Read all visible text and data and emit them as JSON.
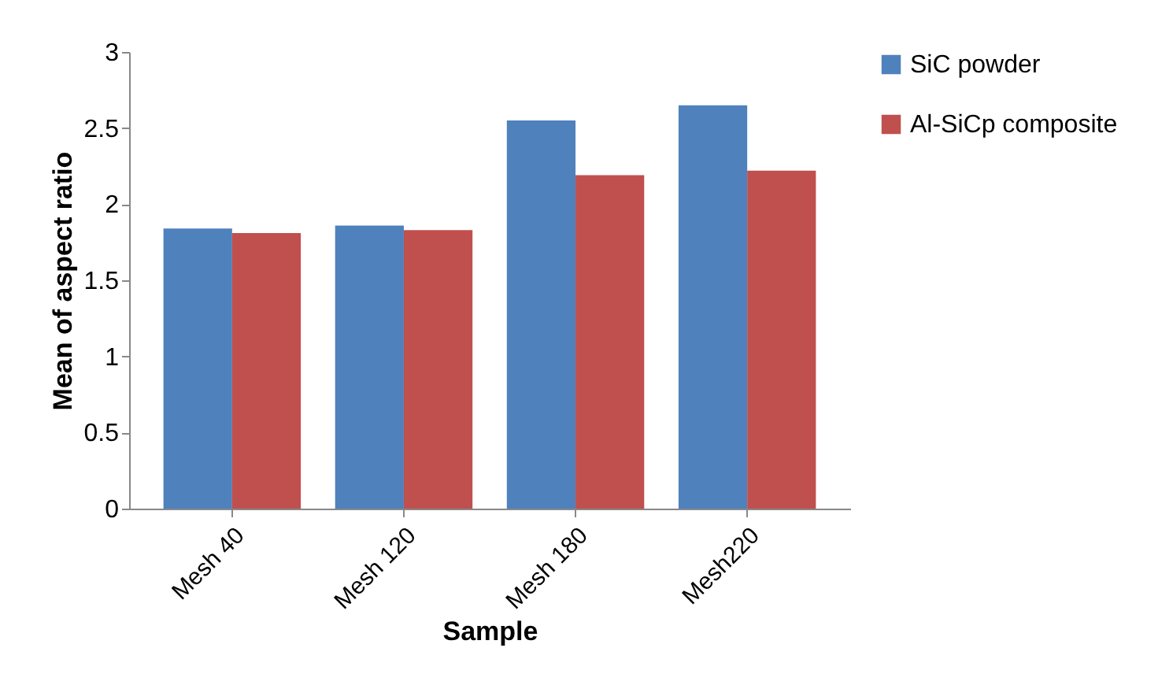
{
  "chart_data": {
    "type": "bar",
    "xlabel": "Sample",
    "ylabel": "Mean of aspect ratio",
    "categories": [
      "Mesh 40",
      "Mesh 120",
      "Mesh 180",
      "Mesh220"
    ],
    "series": [
      {
        "name": "SiC powder",
        "color": "#4f81bd",
        "values": [
          1.84,
          1.86,
          2.55,
          2.65
        ]
      },
      {
        "name": "Al-SiCp composite",
        "color": "#c0504d",
        "values": [
          1.81,
          1.83,
          2.19,
          2.22
        ]
      }
    ],
    "ylim": [
      0,
      3
    ],
    "yticks": [
      0,
      0.5,
      1,
      1.5,
      2,
      2.5,
      3
    ],
    "grid": false,
    "legend": "right"
  }
}
